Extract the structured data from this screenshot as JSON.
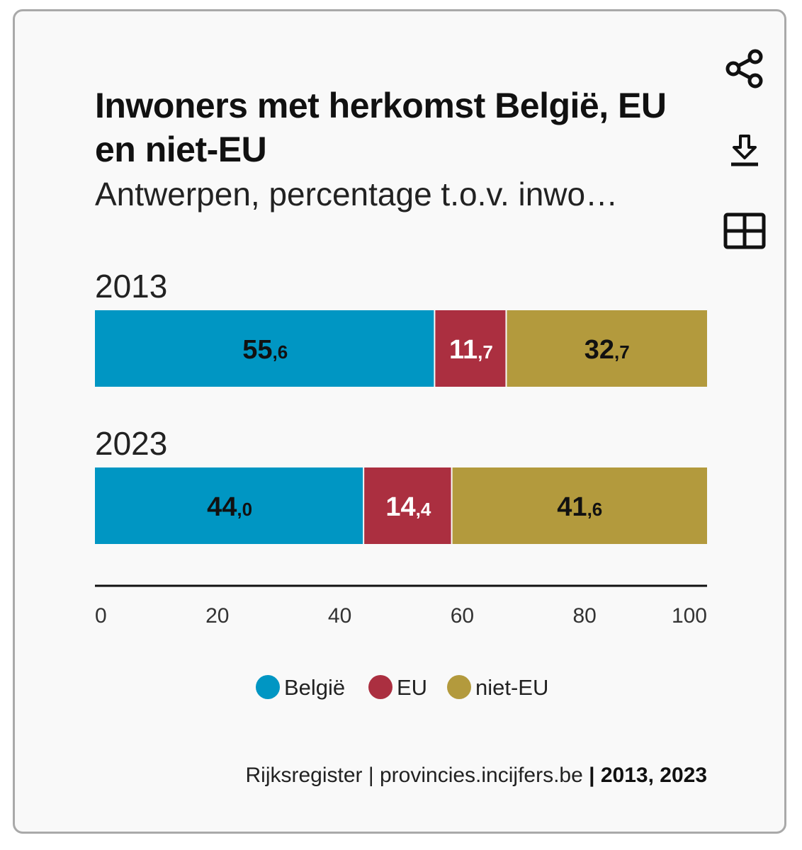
{
  "title": "Inwoners met herkomst België, EU en niet-EU",
  "subtitle": "Antwerpen, percentage t.o.v. inwo…",
  "actions": {
    "share_icon": "share-icon",
    "download_icon": "download-icon",
    "table_icon": "table-icon"
  },
  "colors": {
    "belgie": "#0096c3",
    "eu": "#ab2f40",
    "niet_eu": "#b39a3d",
    "axis": "#111111",
    "card_bg": "#f9f9f9"
  },
  "chart_data": {
    "type": "bar",
    "orientation": "horizontal",
    "stacked": true,
    "categories": [
      "2013",
      "2023"
    ],
    "series": [
      {
        "name": "België",
        "values": [
          55.6,
          44.0
        ],
        "labels": [
          [
            "55",
            ",6"
          ],
          [
            "44",
            ",0"
          ]
        ],
        "label_color": "#111111"
      },
      {
        "name": "EU",
        "values": [
          11.7,
          14.4
        ],
        "labels": [
          [
            "11",
            ",7"
          ],
          [
            "14",
            ",4"
          ]
        ],
        "label_color": "#ffffff"
      },
      {
        "name": "niet-EU",
        "values": [
          32.7,
          41.6
        ],
        "labels": [
          [
            "32",
            ",7"
          ],
          [
            "41",
            ",6"
          ]
        ],
        "label_color": "#111111"
      }
    ],
    "xlim": [
      0,
      100
    ],
    "xticks": [
      "0",
      "20",
      "40",
      "60",
      "80",
      "100"
    ],
    "xtick_values": [
      0,
      20,
      40,
      60,
      80,
      100
    ],
    "grid": false,
    "legend_position": "bottom-center"
  },
  "footer": {
    "source_text": "Rijksregister | provincies.incijfers.be ",
    "years_text": "| 2013, 2023"
  }
}
